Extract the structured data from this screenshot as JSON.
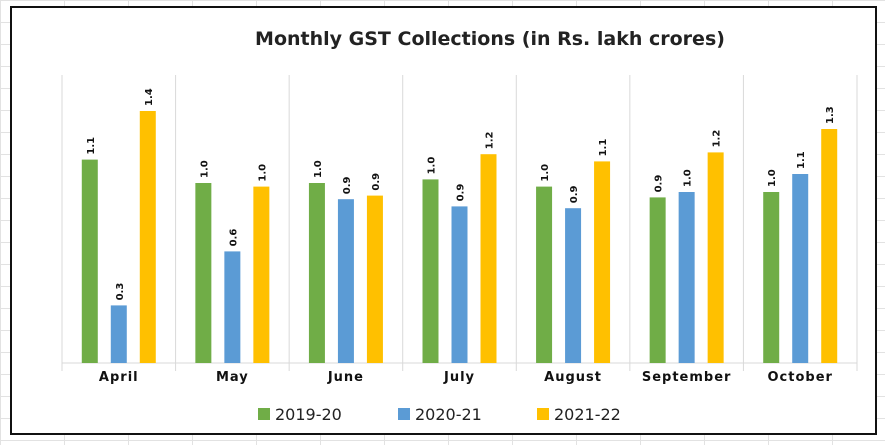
{
  "chart_data": {
    "type": "bar",
    "title": "Monthly GST Collections (in Rs. lakh crores)",
    "xlabel": "",
    "ylabel": "",
    "ylim": [
      0,
      1.6
    ],
    "grid": false,
    "legend_position": "bottom",
    "categories": [
      "April",
      "May",
      "June",
      "July",
      "August",
      "September",
      "October"
    ],
    "series": [
      {
        "name": "2019-20",
        "color": "#70ad47",
        "values": [
          1.13,
          1.0,
          1.0,
          1.02,
          0.98,
          0.92,
          0.95
        ],
        "labels": [
          "1.1",
          "1.0",
          "1.0",
          "1.0",
          "1.0",
          "0.9",
          "1.0"
        ]
      },
      {
        "name": "2020-21",
        "color": "#5b9bd5",
        "values": [
          0.32,
          0.62,
          0.91,
          0.87,
          0.86,
          0.95,
          1.05
        ],
        "labels": [
          "0.3",
          "0.6",
          "0.9",
          "0.9",
          "0.9",
          "1.0",
          "1.1"
        ]
      },
      {
        "name": "2021-22",
        "color": "#ffc000",
        "values": [
          1.4,
          0.98,
          0.93,
          1.16,
          1.12,
          1.17,
          1.3
        ],
        "labels": [
          "1.4",
          "1.0",
          "0.9",
          "1.2",
          "1.1",
          "1.2",
          "1.3"
        ]
      }
    ]
  }
}
